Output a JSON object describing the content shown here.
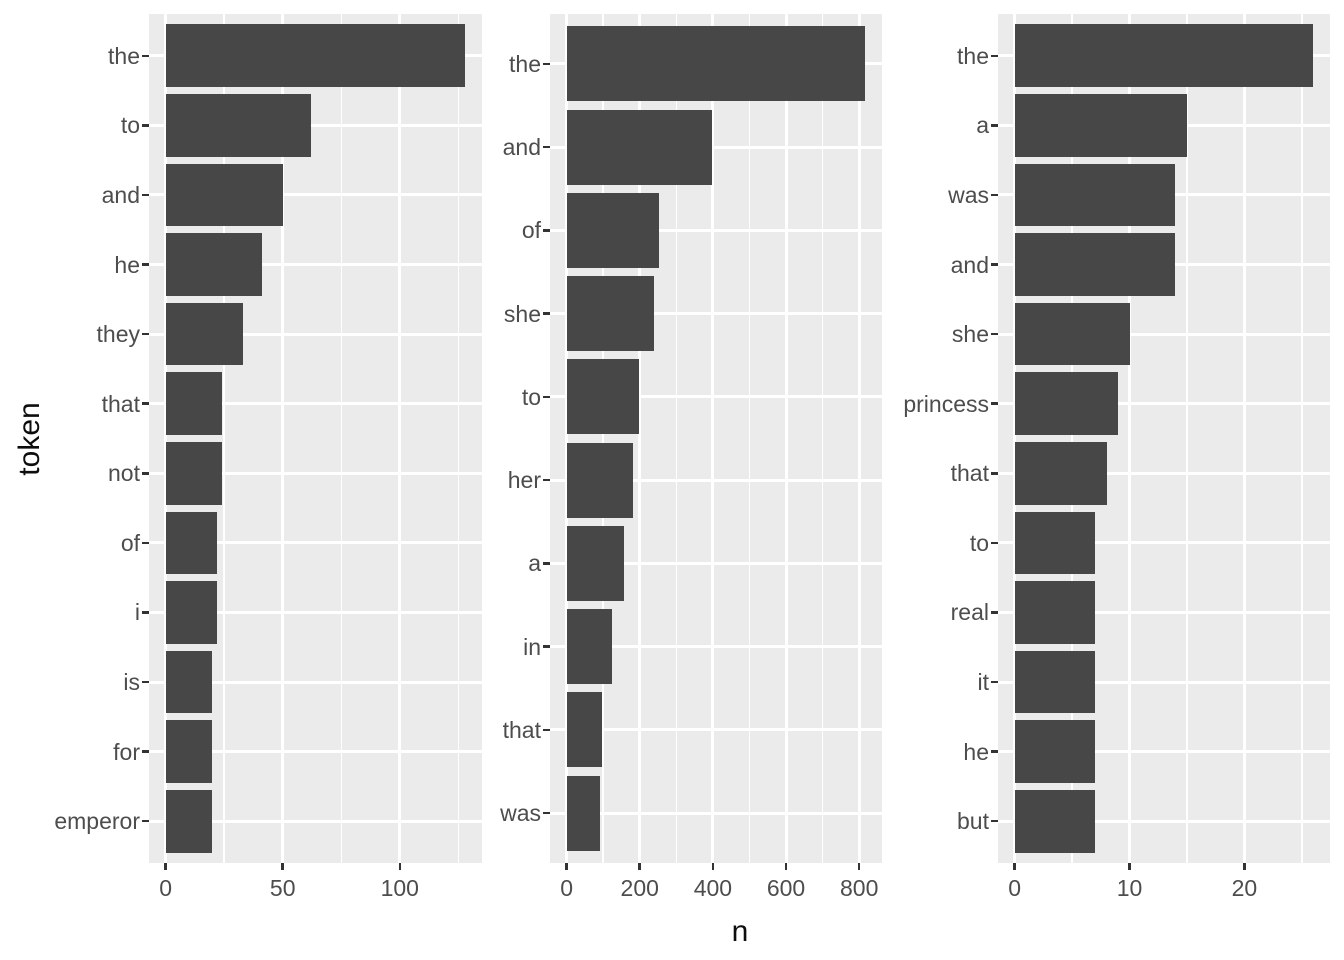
{
  "y_axis_title": "token",
  "x_axis_title": "n",
  "colors": {
    "bar_fill": "#474747",
    "panel_background": "#EBEBEB",
    "gridline": "#FFFFFF",
    "axis_text": "#4D4D4D",
    "axis_title": "#0D0D0D",
    "tick_mark": "#333333",
    "figure_background": "#FFFFFF"
  },
  "chart_data": [
    {
      "type": "bar",
      "orientation": "horizontal",
      "panel": 1,
      "categories": [
        "the",
        "to",
        "and",
        "he",
        "they",
        "that",
        "not",
        "of",
        "i",
        "is",
        "for",
        "emperor"
      ],
      "values": [
        128,
        62,
        50,
        41,
        33,
        24,
        24,
        22,
        22,
        20,
        20,
        20
      ],
      "x_major_ticks": [
        0,
        50,
        100
      ],
      "x_minor_ticks": [
        25,
        75,
        125
      ],
      "xlim": [
        0,
        134
      ],
      "xlabel": "n",
      "ylabel": "token",
      "grid": true,
      "legend": false
    },
    {
      "type": "bar",
      "orientation": "horizontal",
      "panel": 2,
      "categories": [
        "the",
        "and",
        "of",
        "she",
        "to",
        "her",
        "a",
        "in",
        "that",
        "was"
      ],
      "values": [
        817,
        398,
        252,
        240,
        199,
        181,
        158,
        124,
        97,
        92
      ],
      "x_major_ticks": [
        0,
        200,
        400,
        600,
        800
      ],
      "x_minor_ticks": [
        100,
        300,
        500,
        700
      ],
      "xlim": [
        0,
        858
      ],
      "xlabel": "n",
      "ylabel": "token",
      "grid": true,
      "legend": false
    },
    {
      "type": "bar",
      "orientation": "horizontal",
      "panel": 3,
      "categories": [
        "the",
        "a",
        "was",
        "and",
        "she",
        "princess",
        "that",
        "to",
        "real",
        "it",
        "he",
        "but"
      ],
      "values": [
        26,
        15,
        14,
        14,
        10,
        9,
        8,
        7,
        7,
        7,
        7,
        7
      ],
      "x_major_ticks": [
        0,
        10,
        20
      ],
      "x_minor_ticks": [
        5,
        15,
        25
      ],
      "xlim": [
        0,
        27.3
      ],
      "xlabel": "n",
      "ylabel": "token",
      "grid": true,
      "legend": false
    }
  ]
}
